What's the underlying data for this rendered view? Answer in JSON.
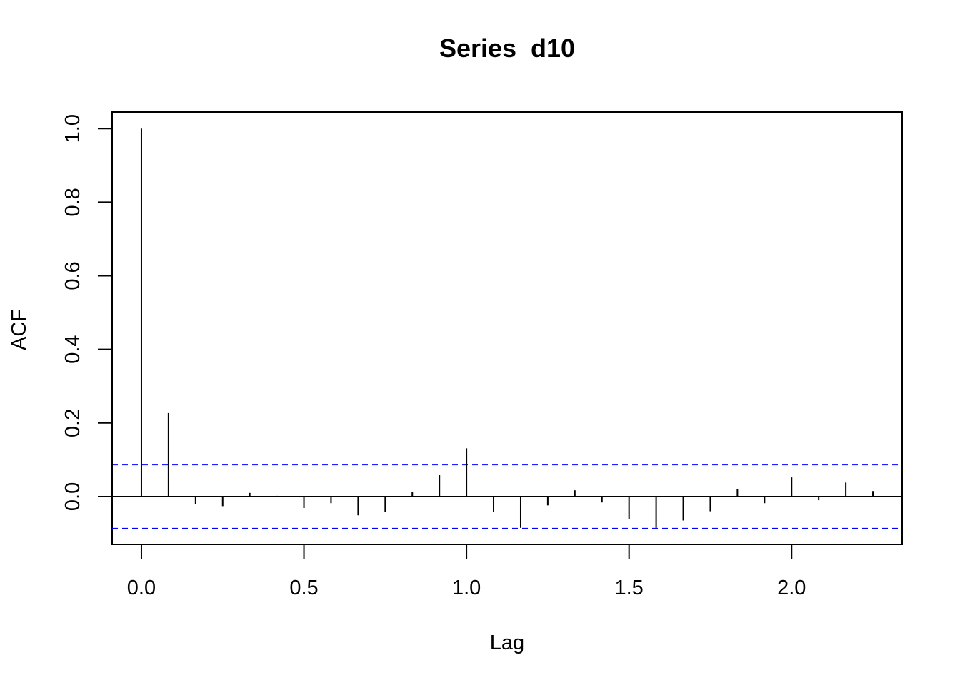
{
  "chart_data": {
    "type": "bar",
    "subtype": "acf-stem",
    "title": "Series  d10",
    "xlabel": "Lag",
    "ylabel": "ACF",
    "xlim": [
      -0.09,
      2.34
    ],
    "ylim": [
      -0.13,
      1.045
    ],
    "xticks": [
      0.0,
      0.5,
      1.0,
      1.5,
      2.0
    ],
    "xtick_labels": [
      "0.0",
      "0.5",
      "1.0",
      "1.5",
      "2.0"
    ],
    "yticks": [
      0.0,
      0.2,
      0.4,
      0.6,
      0.8,
      1.0
    ],
    "ytick_labels": [
      "0.0",
      "0.2",
      "0.4",
      "0.6",
      "0.8",
      "1.0"
    ],
    "lags": [
      0.0,
      0.0833,
      0.1667,
      0.25,
      0.3333,
      0.4167,
      0.5,
      0.5833,
      0.6667,
      0.75,
      0.8333,
      0.9167,
      1.0,
      1.0833,
      1.1667,
      1.25,
      1.3333,
      1.4167,
      1.5,
      1.5833,
      1.6667,
      1.75,
      1.8333,
      1.9167,
      2.0,
      2.0833,
      2.1667,
      2.25
    ],
    "acf": [
      1.0,
      0.227,
      -0.02,
      -0.026,
      0.01,
      0.002,
      -0.031,
      -0.018,
      -0.051,
      -0.042,
      0.012,
      0.06,
      0.131,
      -0.041,
      -0.085,
      -0.024,
      0.017,
      -0.016,
      -0.061,
      -0.085,
      -0.065,
      -0.04,
      0.02,
      -0.018,
      0.052,
      -0.01,
      0.038,
      0.015
    ],
    "confidence_band": 0.087,
    "zero_line": true,
    "grid": false,
    "colors": {
      "stems": "#000000",
      "band": "#0000ff",
      "frame": "#000000"
    }
  }
}
